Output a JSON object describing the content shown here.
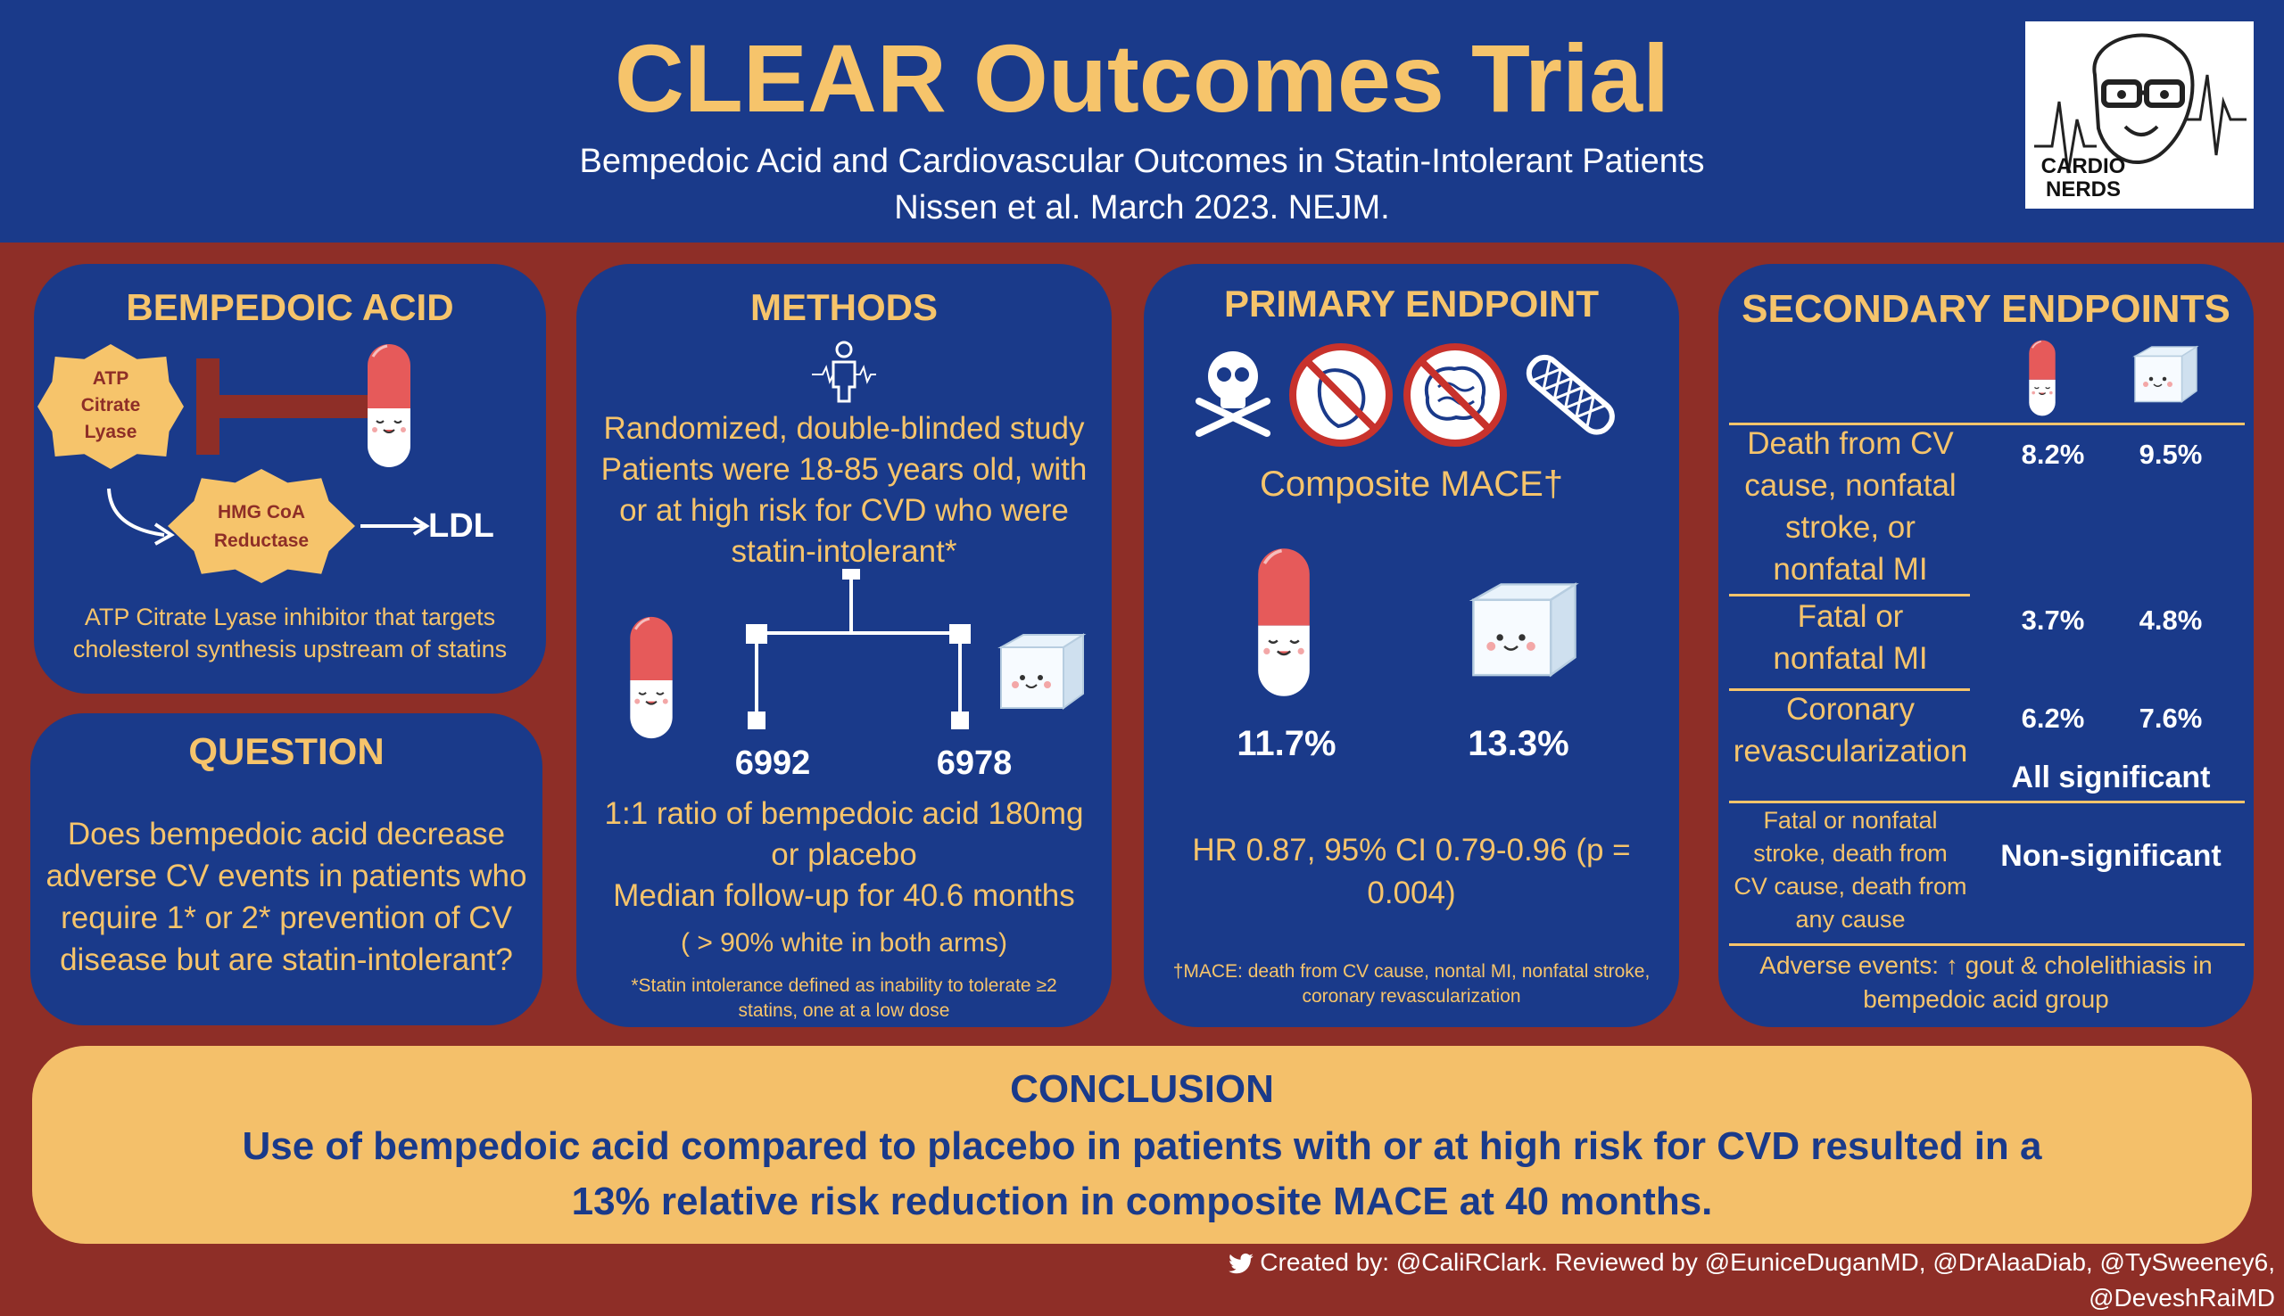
{
  "header": {
    "title": "CLEAR Outcomes Trial",
    "subtitle_line1": "Bempedoic Acid and Cardiovascular Outcomes in Statin-Intolerant Patients",
    "subtitle_line2": "Nissen et al. March 2023. NEJM.",
    "logo_text": "CARDIO NERDS"
  },
  "bempedoic": {
    "title": "BEMPEDOIC ACID",
    "enzyme1": [
      "ATP",
      "Citrate",
      "Lyase"
    ],
    "enzyme2": [
      "HMG CoA",
      "Reductase"
    ],
    "ldl": "LDL",
    "caption1": "ATP Citrate Lyase inhibitor that targets",
    "caption2": "cholesterol synthesis upstream of statins"
  },
  "question": {
    "title": "QUESTION",
    "lines": [
      "Does bempedoic acid decrease",
      "adverse CV events in patients who",
      "require 1* or 2* prevention of CV",
      "disease but are statin-intolerant?"
    ]
  },
  "methods": {
    "title": "METHODS",
    "lines": [
      "Randomized, double-blinded study",
      "Patients were 18-85 years old, with",
      "or at high risk for CVD who were",
      "statin-intolerant*"
    ],
    "n_drug": "6992",
    "n_placebo": "6978",
    "ratio1": "1:1 ratio of bempedoic acid 180mg",
    "ratio2": "or placebo",
    "followup": "Median follow-up for 40.6 months",
    "white": "( > 90% white in both arms)",
    "footnote1": "*Statin intolerance defined as inability to tolerate ≥2",
    "footnote2": "statins, one at a low dose"
  },
  "primary": {
    "title": "PRIMARY ENDPOINT",
    "composite": "Composite MACE†",
    "drug_pct": "11.7%",
    "placebo_pct": "13.3%",
    "hr1": "HR 0.87, 95% CI 0.79-0.96 (p =",
    "hr2": "0.004)",
    "footnote1": "†MACE: death from CV cause, nontal MI, nonfatal stroke,",
    "footnote2": "coronary revascularization"
  },
  "secondary": {
    "title": "SECONDARY ENDPOINTS",
    "rows": [
      {
        "label": [
          "Death from CV",
          "cause, nonfatal",
          "stroke, or",
          "nonfatal MI"
        ],
        "drug": "8.2%",
        "placebo": "9.5%"
      },
      {
        "label": [
          "Fatal or",
          "nonfatal MI"
        ],
        "drug": "3.7%",
        "placebo": "4.8%"
      },
      {
        "label": [
          "Coronary",
          "revascularization"
        ],
        "drug": "6.2%",
        "placebo": "7.6%"
      }
    ],
    "all_sig": "All significant",
    "nonsig_label": [
      "Fatal or nonfatal",
      "stroke, death from",
      "CV cause, death from",
      "any cause"
    ],
    "nonsig": "Non-significant",
    "adverse1": "Adverse events: ↑ gout & cholelithiasis in",
    "adverse2": "bempedoic acid group"
  },
  "conclusion": {
    "title": "CONCLUSION",
    "line1": "Use of bempedoic acid compared to placebo in patients with or at high risk for CVD resulted in a",
    "line2": "13% relative risk reduction in composite MACE at 40 months."
  },
  "footer": {
    "text": "Created by: @CaliRClark. Reviewed by @EuniceDuganMD, @DrAlaaDiab, @TySweeney6, @DeveshRaiMD"
  },
  "colors": {
    "navy": "#1a3a8a",
    "maroon": "#8e2e27",
    "gold": "#f6c46b",
    "pill_red": "#e65a5a"
  }
}
